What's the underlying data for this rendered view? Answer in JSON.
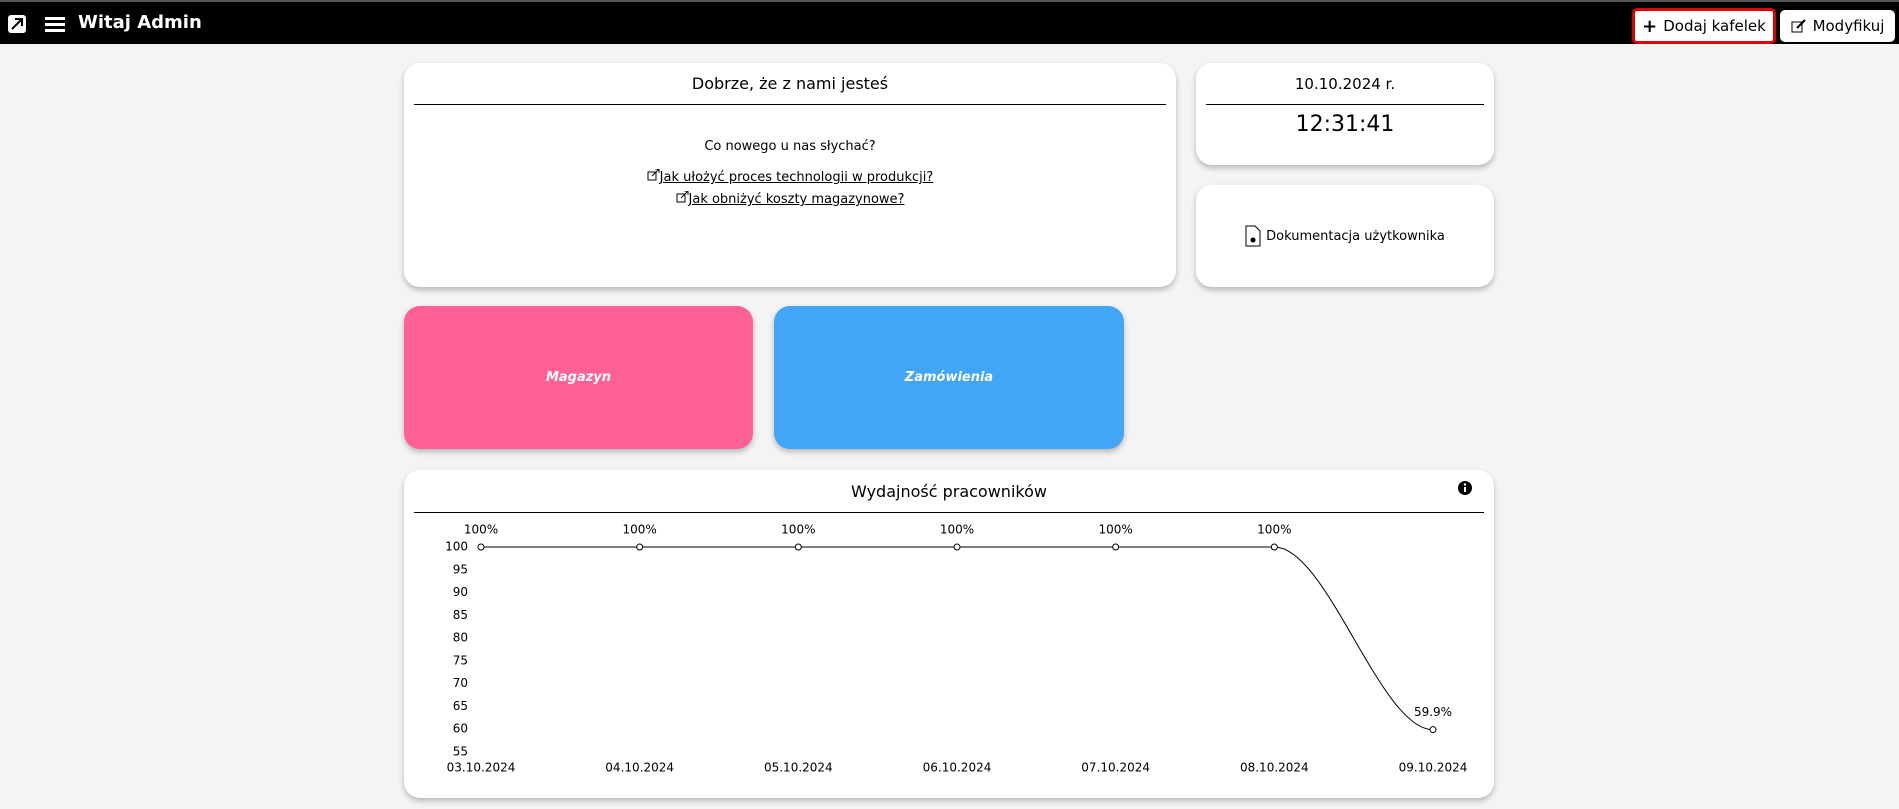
{
  "header": {
    "title": "Witaj Admin",
    "add_button": "Dodaj kafelek",
    "modify_button": "Modyfikuj"
  },
  "welcome": {
    "title": "Dobrze, że z nami jesteś",
    "text": "Co nowego u nas słychać?",
    "links": [
      "Jak ułożyć proces technologii w produkcji?",
      "Jak obniżyć koszty magazynowe?"
    ]
  },
  "clock": {
    "date": "10.10.2024 r.",
    "time": "12:31:41"
  },
  "docs": {
    "label": "Dokumentacja użytkownika"
  },
  "tiles": [
    {
      "label": "Magazyn",
      "color": "#ff6196"
    },
    {
      "label": "Zamówienia",
      "color": "#42a5f5"
    }
  ],
  "chart_data": {
    "type": "line",
    "title": "Wydajność pracowników",
    "categories": [
      "03.10.2024",
      "04.10.2024",
      "05.10.2024",
      "06.10.2024",
      "07.10.2024",
      "08.10.2024",
      "09.10.2024"
    ],
    "values": [
      100,
      100,
      100,
      100,
      100,
      100,
      59.9
    ],
    "value_labels": [
      "100%",
      "100%",
      "100%",
      "100%",
      "100%",
      "100%",
      "59.9%"
    ],
    "color": "#000000",
    "ylim": [
      55,
      100
    ],
    "yticks": [
      55,
      60,
      65,
      70,
      75,
      80,
      85,
      90,
      95,
      100
    ]
  }
}
